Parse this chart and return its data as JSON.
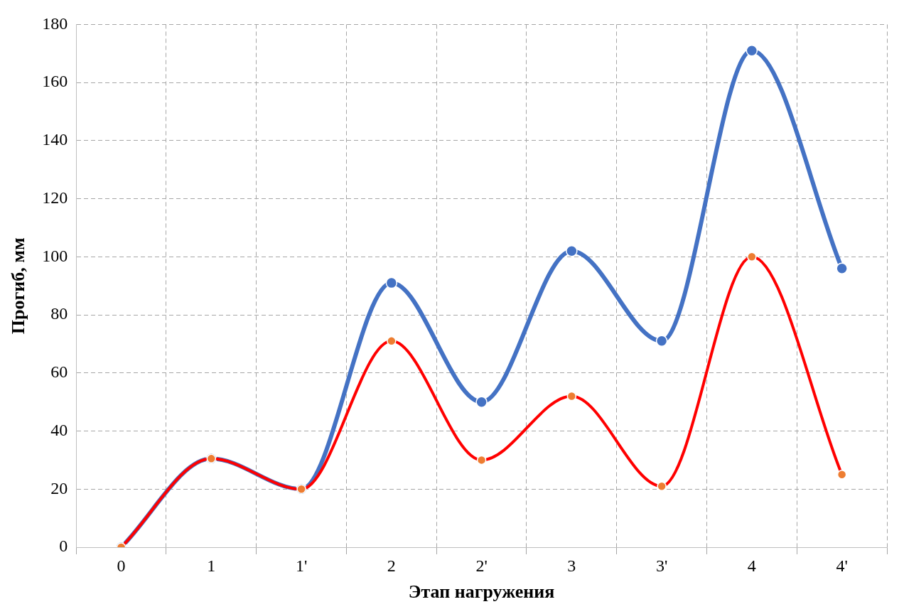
{
  "chart_data": {
    "type": "line",
    "xlabel": "Этап нагружения",
    "ylabel": "Прогиб, мм",
    "categories": [
      "0",
      "1",
      "1'",
      "2",
      "2'",
      "3",
      "3'",
      "4",
      "4'"
    ],
    "series": [
      {
        "color": "#4472c4",
        "values": [
          0,
          30.5,
          20,
          91,
          50,
          102,
          71,
          171,
          96
        ]
      },
      {
        "color": "#ff0000",
        "colors": [
          "#ed7d31",
          "#ed7d31",
          "#ed7d31",
          "#ed7d31",
          "#ed7d31",
          "#ed7d31",
          "#ed7d31",
          "#ed7d31",
          "#ed7d31"
        ],
        "values": [
          0,
          30.5,
          20,
          71,
          30,
          52,
          21,
          100,
          25
        ]
      }
    ],
    "ylim": [
      0,
      180
    ],
    "yticks": [
      0,
      20,
      40,
      60,
      80,
      100,
      120,
      140,
      160,
      180
    ],
    "grid": true,
    "legend": false,
    "marker": "circle",
    "line_style": "solid"
  }
}
